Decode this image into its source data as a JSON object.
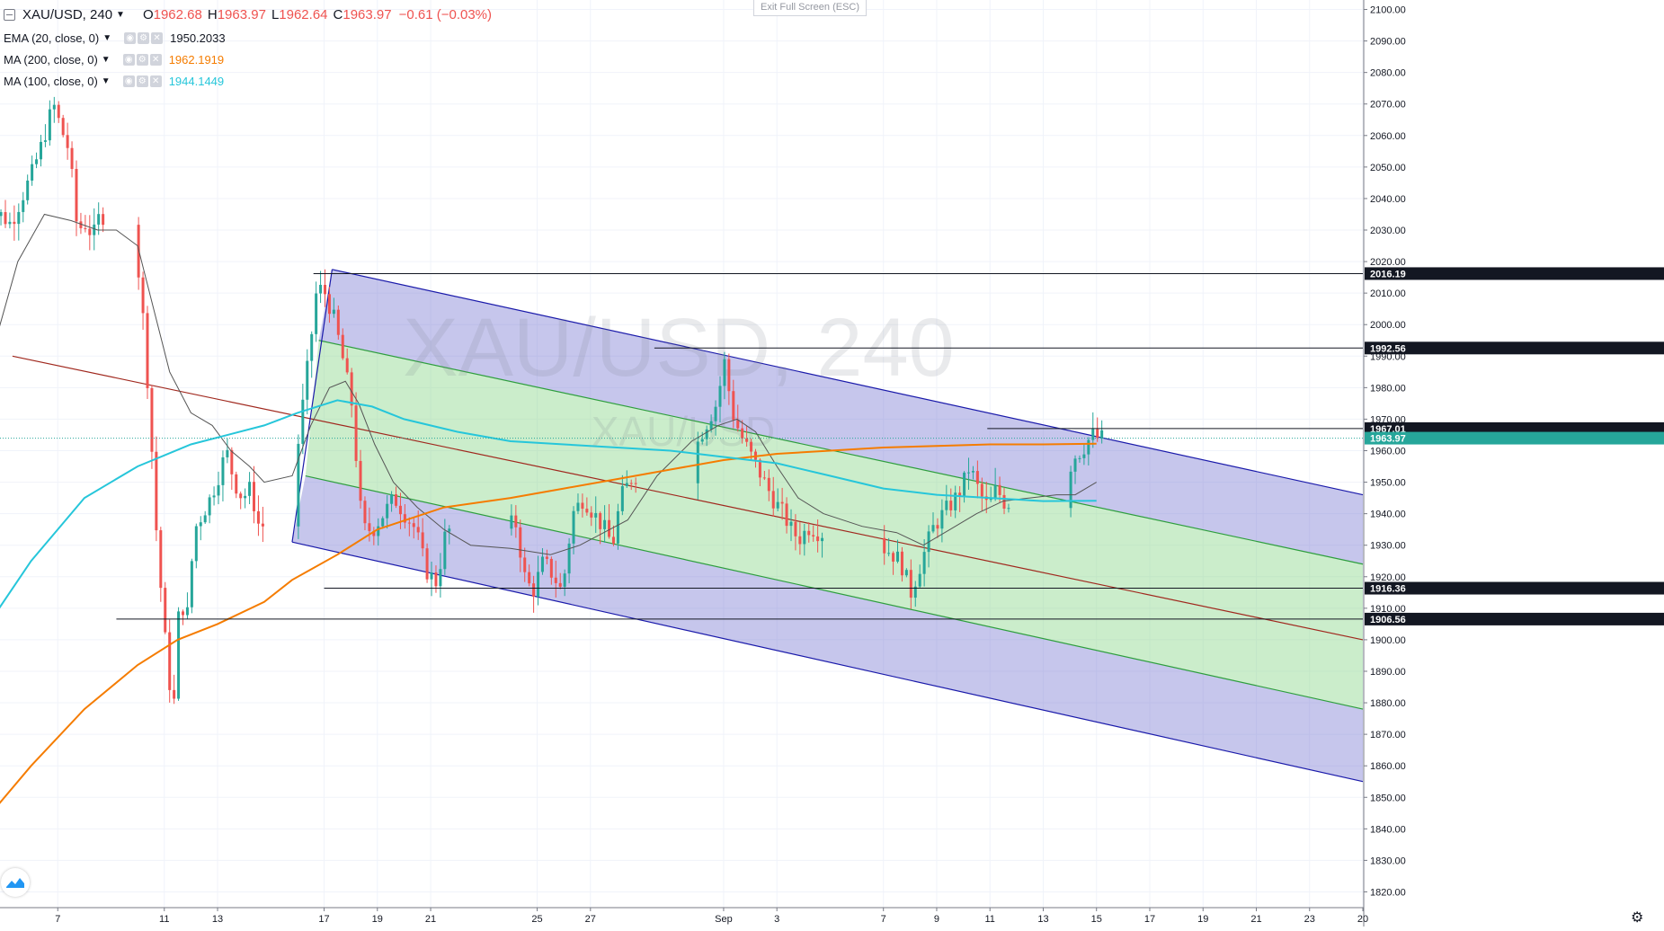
{
  "legend": {
    "symbol": "XAU/USD, 240",
    "open_key": "O",
    "open": "1962.68",
    "high_key": "H",
    "high": "1963.97",
    "low_key": "L",
    "low": "1962.64",
    "close_key": "C",
    "close": "1963.97",
    "change": "−0.61 (−0.03%)",
    "indicators": [
      {
        "name": "EMA (20, close, 0)",
        "value": "1950.2033",
        "color": "#131722"
      },
      {
        "name": "MA (200, close, 0)",
        "value": "1962.1919",
        "color": "#f57c00"
      },
      {
        "name": "MA (100, close, 0)",
        "value": "1944.1449",
        "color": "#26c6da"
      }
    ]
  },
  "toolbar": {
    "exit_label": "Exit Full Screen (ESC)"
  },
  "icons": {
    "symbol": "chart-icon",
    "logo": "tradingview-logo-icon",
    "settings": "gear-icon"
  },
  "colors": {
    "up": "#26a69a",
    "down": "#ef5350",
    "ema20": "#555555",
    "ma200": "#f57c00",
    "ma100": "#26c6da",
    "outer_band": "#1a1aaa",
    "inner_band": "#2e9e3e",
    "median": "#a0281e"
  },
  "chart_data": {
    "type": "candlestick",
    "title": "XAU/USD, 240",
    "watermark": "XAU/USD, 240",
    "watermark_small": "XAU/USD",
    "ylim": [
      1815,
      2103
    ],
    "x_range": [
      "Aug 5",
      "Sep 20"
    ],
    "y_ticks": [
      2100,
      2090,
      2080,
      2070,
      2060,
      2050,
      2040,
      2030,
      2020,
      2010,
      2000,
      1990,
      1980,
      1970,
      1960,
      1950,
      1940,
      1930,
      1920,
      1910,
      1900,
      1890,
      1880,
      1870,
      1860,
      1850,
      1840,
      1830,
      1820
    ],
    "y_tick_labels": [
      "2100.00",
      "2090.00",
      "2080.00",
      "2070.00",
      "2060.00",
      "2050.00",
      "2040.00",
      "2030.00",
      "2020.00",
      "2010.00",
      "2000.00",
      "1990.00",
      "1980.00",
      "1970.00",
      "1960.00",
      "1950.00",
      "1940.00",
      "1930.00",
      "1920.00",
      "1910.00",
      "1900.00",
      "1890.00",
      "1880.00",
      "1870.00",
      "1860.00",
      "1850.00",
      "1840.00",
      "1830.00",
      "1820.00"
    ],
    "x_ticks": [
      {
        "day": 7,
        "label": "7"
      },
      {
        "day": 11,
        "label": "11"
      },
      {
        "day": 13,
        "label": "13"
      },
      {
        "day": 17,
        "label": "17"
      },
      {
        "day": 19,
        "label": "19"
      },
      {
        "day": 21,
        "label": "21"
      },
      {
        "day": 25,
        "label": "25"
      },
      {
        "day": 27,
        "label": "27"
      },
      {
        "day": 32,
        "label": "Sep"
      },
      {
        "day": 34,
        "label": "3"
      },
      {
        "day": 38,
        "label": "7"
      },
      {
        "day": 40,
        "label": "9"
      },
      {
        "day": 42,
        "label": "11"
      },
      {
        "day": 44,
        "label": "13"
      },
      {
        "day": 46,
        "label": "15"
      },
      {
        "day": 48,
        "label": "17"
      },
      {
        "day": 50,
        "label": "19"
      },
      {
        "day": 52,
        "label": "21"
      },
      {
        "day": 54,
        "label": "23"
      },
      {
        "day": 56,
        "label": "20"
      }
    ],
    "weekend_gaps": [
      [
        8.75,
        10
      ],
      [
        14.75,
        16
      ],
      [
        21.75,
        24
      ],
      [
        28.75,
        31
      ],
      [
        35.75,
        38
      ],
      [
        42.75,
        45
      ]
    ],
    "candle_anchors": [
      [
        5.0,
        2035
      ],
      [
        5.4,
        2032
      ],
      [
        5.8,
        2040
      ],
      [
        6.2,
        2048
      ],
      [
        6.6,
        2058
      ],
      [
        7.0,
        2070
      ],
      [
        7.3,
        2062
      ],
      [
        7.6,
        2055
      ],
      [
        7.9,
        2030
      ],
      [
        8.2,
        2032
      ],
      [
        8.5,
        2028
      ],
      [
        8.75,
        2035
      ],
      [
        10.0,
        2030
      ],
      [
        10.3,
        2010
      ],
      [
        10.6,
        1975
      ],
      [
        10.9,
        1930
      ],
      [
        11.2,
        1900
      ],
      [
        11.5,
        1875
      ],
      [
        11.75,
        1915
      ],
      [
        12.0,
        1905
      ],
      [
        12.3,
        1935
      ],
      [
        12.6,
        1940
      ],
      [
        12.9,
        1945
      ],
      [
        13.2,
        1952
      ],
      [
        13.5,
        1960
      ],
      [
        13.8,
        1950
      ],
      [
        14.1,
        1945
      ],
      [
        14.4,
        1948
      ],
      [
        14.75,
        1935
      ],
      [
        16.0,
        1948
      ],
      [
        16.3,
        1970
      ],
      [
        16.6,
        1990
      ],
      [
        16.9,
        2012
      ],
      [
        17.2,
        2010
      ],
      [
        17.5,
        2003
      ],
      [
        17.8,
        1992
      ],
      [
        18.2,
        1975
      ],
      [
        18.6,
        1935
      ],
      [
        19.0,
        1935
      ],
      [
        19.4,
        1940
      ],
      [
        19.8,
        1945
      ],
      [
        20.2,
        1940
      ],
      [
        20.6,
        1935
      ],
      [
        21.0,
        1922
      ],
      [
        21.4,
        1918
      ],
      [
        21.75,
        1935
      ],
      [
        24.0,
        1930
      ],
      [
        24.3,
        1940
      ],
      [
        24.7,
        1920
      ],
      [
        25.0,
        1915
      ],
      [
        25.4,
        1925
      ],
      [
        25.8,
        1920
      ],
      [
        26.1,
        1915
      ],
      [
        26.5,
        1940
      ],
      [
        26.9,
        1945
      ],
      [
        27.3,
        1940
      ],
      [
        27.7,
        1935
      ],
      [
        28.0,
        1930
      ],
      [
        28.3,
        1945
      ],
      [
        28.75,
        1952
      ],
      [
        31.0,
        1958
      ],
      [
        31.3,
        1965
      ],
      [
        31.6,
        1970
      ],
      [
        31.9,
        1975
      ],
      [
        32.2,
        1988
      ],
      [
        32.5,
        1972
      ],
      [
        32.8,
        1965
      ],
      [
        33.1,
        1960
      ],
      [
        33.4,
        1955
      ],
      [
        33.7,
        1950
      ],
      [
        34.0,
        1945
      ],
      [
        34.4,
        1940
      ],
      [
        34.7,
        1935
      ],
      [
        35.0,
        1932
      ],
      [
        35.4,
        1936
      ],
      [
        35.75,
        1934
      ],
      [
        38.0,
        1930
      ],
      [
        38.4,
        1928
      ],
      [
        38.8,
        1925
      ],
      [
        39.2,
        1915
      ],
      [
        39.6,
        1925
      ],
      [
        40.0,
        1935
      ],
      [
        40.4,
        1940
      ],
      [
        40.8,
        1944
      ],
      [
        41.1,
        1948
      ],
      [
        41.4,
        1955
      ],
      [
        41.8,
        1946
      ],
      [
        42.1,
        1942
      ],
      [
        42.4,
        1948
      ],
      [
        42.75,
        1943
      ],
      [
        45.0,
        1950
      ],
      [
        45.3,
        1958
      ],
      [
        45.6,
        1960
      ],
      [
        46.0,
        1965
      ],
      [
        46.2,
        1964
      ]
    ],
    "pitchfork": {
      "outer_upper": {
        "start": [
          17.3,
          2017.5
        ],
        "end": [
          56,
          1946
        ]
      },
      "inner_upper": {
        "start": [
          16.8,
          1995
        ],
        "end": [
          56,
          1924
        ]
      },
      "median": {
        "start": [
          5.3,
          1990
        ],
        "end": [
          56,
          1900
        ]
      },
      "inner_lower": {
        "start": [
          16.3,
          1952
        ],
        "end": [
          56,
          1878
        ]
      },
      "outer_lower": {
        "start": [
          15.8,
          1931
        ],
        "end": [
          56,
          1855
        ]
      }
    },
    "horizontal_levels": [
      {
        "price": 2016.19,
        "label": "2016.19",
        "x_start": 16.6
      },
      {
        "price": 1992.56,
        "label": "1992.56",
        "x_start": 29.4
      },
      {
        "price": 1967.01,
        "label": "1967.01",
        "x_start": 41.9
      },
      {
        "price": 1916.36,
        "label": "1916.36",
        "x_start": 17.0
      },
      {
        "price": 1906.56,
        "label": "1906.56",
        "x_start": 9.2
      }
    ],
    "current_price": {
      "price": 1963.97,
      "label": "1963.97"
    },
    "series": [
      {
        "name": "EMA (20, close, 0)",
        "points": [
          [
            4.5,
            1990
          ],
          [
            5.5,
            2020
          ],
          [
            6.5,
            2035
          ],
          [
            7.5,
            2033
          ],
          [
            8.5,
            2030
          ],
          [
            9.2,
            2030
          ],
          [
            10.0,
            2025
          ],
          [
            10.6,
            2005
          ],
          [
            11.2,
            1985
          ],
          [
            12.0,
            1972
          ],
          [
            12.8,
            1968
          ],
          [
            13.5,
            1960
          ],
          [
            14.2,
            1955
          ],
          [
            14.75,
            1950
          ],
          [
            15.8,
            1952
          ],
          [
            16.5,
            1968
          ],
          [
            17.2,
            1980
          ],
          [
            17.8,
            1982
          ],
          [
            18.3,
            1975
          ],
          [
            18.9,
            1962
          ],
          [
            19.6,
            1950
          ],
          [
            20.5,
            1942
          ],
          [
            21.5,
            1935
          ],
          [
            22.5,
            1930
          ],
          [
            24.0,
            1929
          ],
          [
            25.5,
            1927
          ],
          [
            26.6,
            1930
          ],
          [
            27.5,
            1934
          ],
          [
            28.4,
            1938
          ],
          [
            29.5,
            1952
          ],
          [
            30.8,
            1963
          ],
          [
            31.8,
            1968
          ],
          [
            32.5,
            1970
          ],
          [
            33.2,
            1966
          ],
          [
            34.0,
            1955
          ],
          [
            34.8,
            1945
          ],
          [
            35.75,
            1940
          ],
          [
            37.2,
            1936
          ],
          [
            38.5,
            1934
          ],
          [
            39.5,
            1930
          ],
          [
            40.5,
            1935
          ],
          [
            41.5,
            1940
          ],
          [
            42.5,
            1944
          ],
          [
            43.5,
            1945
          ],
          [
            44.5,
            1946
          ],
          [
            45.2,
            1946
          ],
          [
            46.0,
            1950
          ]
        ]
      },
      {
        "name": "MA (200, close, 0)",
        "points": [
          [
            4.0,
            1840
          ],
          [
            6.0,
            1860
          ],
          [
            8.0,
            1878
          ],
          [
            10.0,
            1892
          ],
          [
            11.5,
            1900
          ],
          [
            13.0,
            1905
          ],
          [
            14.75,
            1912
          ],
          [
            15.8,
            1919
          ],
          [
            17.5,
            1927
          ],
          [
            19.0,
            1935
          ],
          [
            21.5,
            1942
          ],
          [
            24.0,
            1945
          ],
          [
            26.0,
            1948
          ],
          [
            28.0,
            1951
          ],
          [
            30.0,
            1954
          ],
          [
            32.0,
            1957
          ],
          [
            34.0,
            1959
          ],
          [
            36.0,
            1960
          ],
          [
            38.0,
            1961
          ],
          [
            40.0,
            1961.5
          ],
          [
            42.0,
            1962
          ],
          [
            44.0,
            1962
          ],
          [
            46.0,
            1962.2
          ]
        ]
      },
      {
        "name": "MA (100, close, 0)",
        "points": [
          [
            4.0,
            1900
          ],
          [
            6.0,
            1925
          ],
          [
            8.0,
            1945
          ],
          [
            10.0,
            1955
          ],
          [
            12.0,
            1962
          ],
          [
            14.75,
            1968
          ],
          [
            16.0,
            1972
          ],
          [
            17.5,
            1976
          ],
          [
            18.8,
            1974
          ],
          [
            20.0,
            1970
          ],
          [
            22.0,
            1966
          ],
          [
            24.0,
            1963
          ],
          [
            26.0,
            1962
          ],
          [
            28.0,
            1961
          ],
          [
            30.0,
            1960
          ],
          [
            32.0,
            1958
          ],
          [
            34.0,
            1956
          ],
          [
            36.0,
            1952
          ],
          [
            38.0,
            1948
          ],
          [
            40.0,
            1946
          ],
          [
            42.0,
            1945
          ],
          [
            44.0,
            1944
          ],
          [
            46.0,
            1944.1
          ]
        ]
      }
    ]
  }
}
